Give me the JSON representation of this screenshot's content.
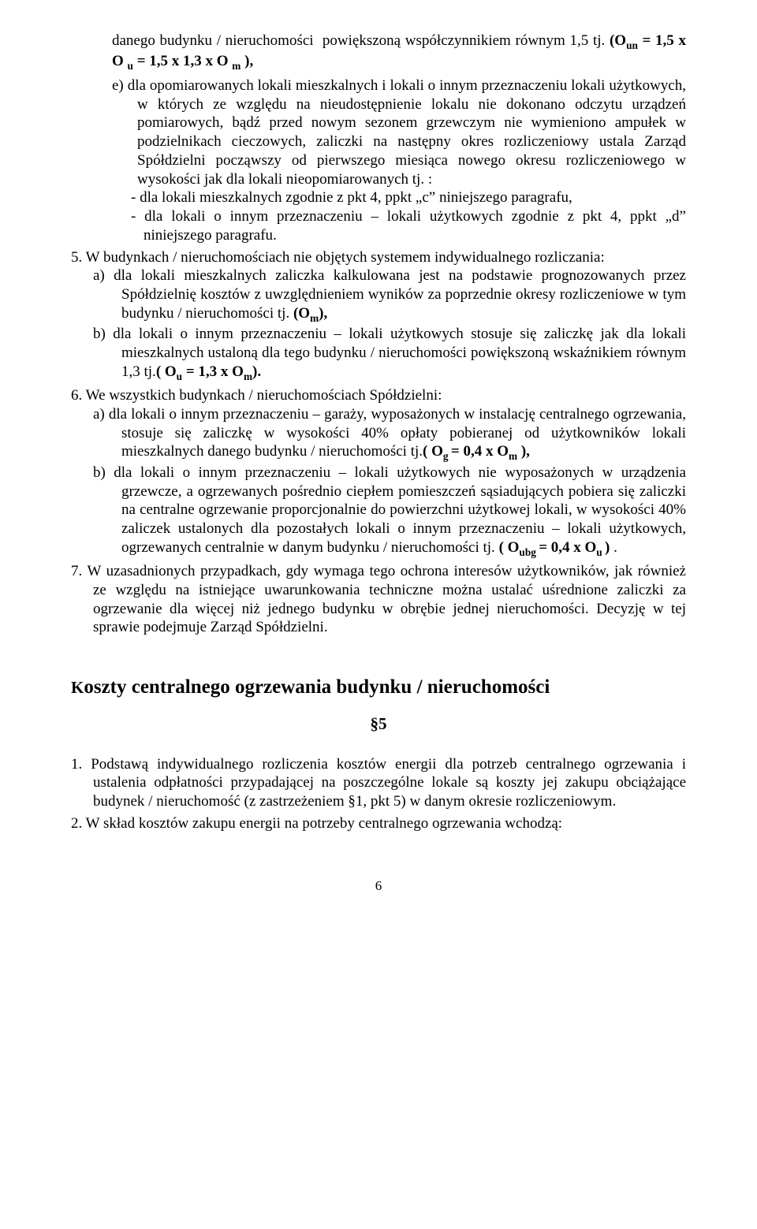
{
  "para1": "danego budynku / nieruchomości  powiększoną współczynnikiem równym 1,5 tj. (Oun = 1,5 x O u = 1,5 x 1,3 x O m ),",
  "item_e_intro": "e)  dla opomiarowanych lokali mieszkalnych i lokali o innym przeznaczeniu lokali użytkowych, w których ze względu na nieudostępnienie lokalu nie dokonano odczytu urządzeń pomiarowych, bądź przed nowym sezonem grzewczym nie wymieniono ampułek w podzielnikach cieczowych, zaliczki na następny okres rozliczeniowy ustala Zarząd Spółdzielni począwszy od pierwszego miesiąca nowego okresu rozliczeniowego w wysokości jak dla lokali nieopomiarowanych tj. :",
  "item_e_dash1": "-  dla lokali mieszkalnych zgodnie z pkt 4, ppkt „c” niniejszego paragrafu,",
  "item_e_dash2": "-  dla lokali o innym przeznaczeniu – lokali użytkowych zgodnie z pkt 4, ppkt „d” niniejszego paragrafu.",
  "item5_intro": "5.  W budynkach / nieruchomościach nie objętych systemem indywidualnego rozliczania:",
  "item5a_pre": "a)  dla lokali mieszkalnych zaliczka kalkulowana jest na podstawie prognozowanych przez Spółdzielnię kosztów z uwzględnieniem wyników za poprzednie okresy rozliczeniowe w tym  budynku / nieruchomości  tj. ",
  "item5a_bold": "(Om),",
  "item5b_pre": "b)  dla lokali o innym przeznaczeniu – lokali użytkowych stosuje się zaliczkę jak dla lokali mieszkalnych ustaloną dla tego budynku / nieruchomości powiększoną wskaźnikiem  równym 1,3   tj.",
  "item5b_bold": "( Ou = 1,3 x Om).",
  "item6_intro": "6.  We wszystkich budynkach / nieruchomościach Spółdzielni:",
  "item6a_pre": "a)    dla lokali o innym przeznaczeniu – garaży, wyposażonych w instalację centralnego ogrzewania, stosuje się   zaliczkę w wysokości 40% opłaty pobieranej od użytkowników lokali mieszkalnych  danego budynku / nieruchomości    tj.",
  "item6a_bold": "( Og = 0,4 x Om ),",
  "item6b_pre": "b)   dla lokali o innym przeznaczeniu – lokali użytkowych nie wyposażonych w urządzenia grzewcze, a ogrzewanych pośrednio ciepłem pomieszczeń sąsiadujących pobiera się  zaliczki na centralne ogrzewanie proporcjonalnie do powierzchni użytkowej lokali, w wysokości 40% zaliczek ustalonych dla pozostałych lokali o innym przeznaczeniu – lokali użytkowych, ogrzewanych centralnie w danym budynku / nieruchomości        tj.  ",
  "item6b_bold": "( Oubg = 0,4 x Ou )",
  "item6b_post": " .",
  "item7": "7.  W uzasadnionych przypadkach, gdy wymaga tego ochrona interesów użytkowników, jak również ze względu na istniejące uwarunkowania techniczne można ustalać uśrednione zaliczki za ogrzewanie dla więcej niż jednego budynku w obrębie jednej nieruchomości. Decyzję w tej sprawie podejmuje Zarząd Spółdzielni.",
  "heading": "Koszty centralnego ogrzewania budynku / nieruchomości",
  "heading_prefix": "K",
  "para_symbol": "§5",
  "sec5_item1": "1.  Podstawą indywidualnego rozliczenia kosztów energii dla potrzeb centralnego ogrzewania i ustalenia odpłatności przypadającej na poszczególne lokale są koszty jej zakupu obciążające budynek / nieruchomość (z zastrzeżeniem §1, pkt 5) w danym okresie rozliczeniowym.",
  "sec5_item2": "2.  W skład kosztów  zakupu energii na potrzeby centralnego ogrzewania wchodzą:",
  "pagenum": "6"
}
